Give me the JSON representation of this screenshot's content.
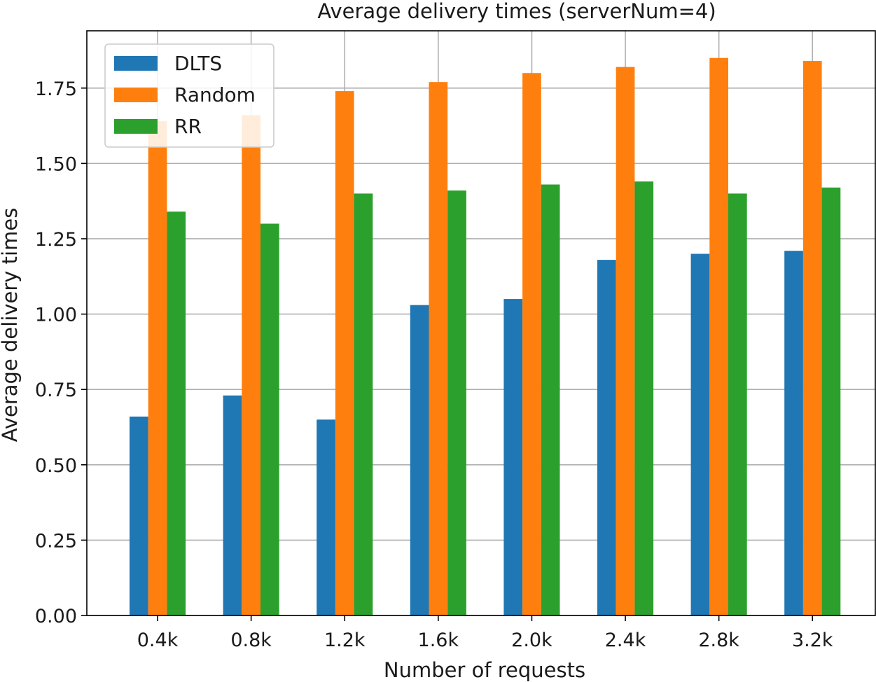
{
  "chart_data": {
    "type": "bar",
    "title": "Average delivery times (serverNum=4)",
    "xlabel": "Number of requests",
    "ylabel": "Average delivery times",
    "categories": [
      "0.4k",
      "0.8k",
      "1.2k",
      "1.6k",
      "2.0k",
      "2.4k",
      "2.8k",
      "3.2k"
    ],
    "series": [
      {
        "name": "DLTS",
        "color": "#1f77b4",
        "values": [
          0.66,
          0.73,
          0.65,
          1.03,
          1.05,
          1.18,
          1.2,
          1.21
        ]
      },
      {
        "name": "Random",
        "color": "#ff7f0e",
        "values": [
          1.64,
          1.66,
          1.74,
          1.77,
          1.8,
          1.82,
          1.85,
          1.84
        ]
      },
      {
        "name": "RR",
        "color": "#2ca02c",
        "values": [
          1.34,
          1.3,
          1.4,
          1.41,
          1.43,
          1.44,
          1.4,
          1.42
        ]
      }
    ],
    "ylim": [
      0,
      1.94
    ],
    "yticks": [
      0.0,
      0.25,
      0.5,
      0.75,
      1.0,
      1.25,
      1.5,
      1.75
    ],
    "ytick_labels": [
      "0.00",
      "0.25",
      "0.50",
      "0.75",
      "1.00",
      "1.25",
      "1.50",
      "1.75"
    ],
    "grid": true,
    "legend_position": "top-left"
  }
}
